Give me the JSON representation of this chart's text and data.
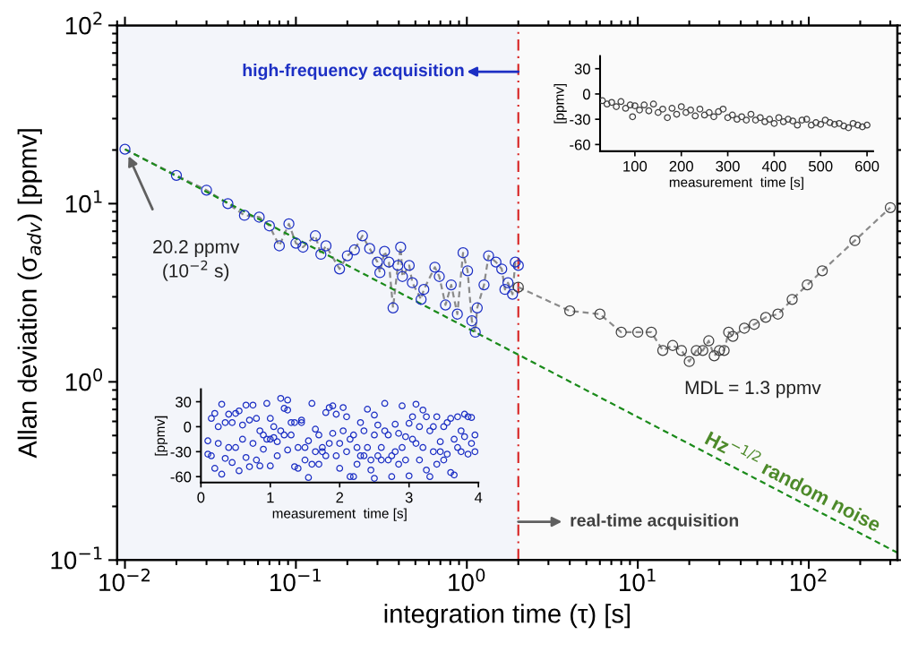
{
  "chart_data": [
    {
      "type": "line",
      "xlabel": "integration time (τ) [s]",
      "ylabel": "Allan deviation (σ$_{adv}$) [ppmv]",
      "log": "xy",
      "xlim": [
        0.009,
        330
      ],
      "ylim": [
        0.1,
        100
      ],
      "xticks": [
        {
          "value": 0.01,
          "label": "10$^{−2}$"
        },
        {
          "value": 0.1,
          "label": "10$^{−1}$"
        },
        {
          "value": 1,
          "label": "10$^{0}$"
        },
        {
          "value": 10,
          "label": "10$^{1}$"
        },
        {
          "value": 100,
          "label": "10$^{2}$"
        }
      ],
      "yticks": [
        {
          "value": 0.1,
          "label": "10$^{−1}$"
        },
        {
          "value": 1,
          "label": "10$^{0}$"
        },
        {
          "value": 10,
          "label": "10$^{1}$"
        },
        {
          "value": 100,
          "label": "10$^{2}$"
        }
      ],
      "series": [
        {
          "type": "line",
          "color": "#1c2fc4",
          "marker": "circle",
          "line_style": "dashed",
          "x": [
            0.01,
            0.02,
            0.03,
            0.04,
            0.05,
            0.061,
            0.07,
            0.08,
            0.091,
            0.1,
            0.11,
            0.13,
            0.14,
            0.15,
            0.18,
            0.2,
            0.22,
            0.245,
            0.27,
            0.3,
            0.31,
            0.33,
            0.35,
            0.37,
            0.395,
            0.41,
            0.42,
            0.46,
            0.48,
            0.54,
            0.56,
            0.65,
            0.69,
            0.75,
            0.81,
            0.88,
            0.95,
            1.01,
            1.07,
            1.12,
            1.15,
            1.26,
            1.34,
            1.48,
            1.6,
            1.67,
            1.74,
            1.85,
            1.92,
            2.0
          ],
          "values": [
            20.2,
            14.4,
            11.9,
            10.0,
            8.6,
            8.4,
            7.5,
            5.8,
            7.7,
            6.0,
            5.7,
            6.6,
            5.2,
            5.8,
            4.3,
            5.1,
            5.5,
            6.6,
            5.6,
            4.7,
            4.1,
            5.4,
            4.7,
            2.6,
            4.5,
            5.7,
            3.9,
            4.5,
            3.6,
            2.9,
            3.3,
            4.4,
            3.9,
            2.7,
            3.5,
            2.4,
            5.3,
            4.2,
            2.2,
            1.9,
            2.6,
            3.5,
            5.1,
            4.7,
            4.3,
            3.3,
            3.6,
            3.1,
            4.7,
            4.5
          ]
        },
        {
          "type": "line",
          "color": "#404040",
          "marker": "circle",
          "line_style": "dashed",
          "x": [
            2.0,
            4,
            6,
            8,
            10,
            12,
            14,
            16,
            18,
            20,
            22,
            24,
            26,
            28,
            30,
            32,
            34,
            36,
            42,
            48,
            56,
            66,
            80,
            98,
            120,
            186,
            300
          ],
          "values": [
            3.4,
            2.5,
            2.4,
            1.9,
            1.9,
            1.9,
            1.5,
            1.6,
            1.5,
            1.3,
            1.5,
            1.5,
            1.7,
            1.4,
            1.5,
            1.5,
            1.9,
            1.8,
            2.0,
            2.1,
            2.3,
            2.4,
            2.9,
            3.5,
            4.2,
            6.2,
            9.5
          ]
        },
        {
          "type": "line",
          "color": "#1a8a1a",
          "marker": "none",
          "line_style": "dashed",
          "x": [
            0.01,
            330
          ],
          "values": [
            20.2,
            0.11
          ]
        }
      ],
      "bands": [
        {
          "axis": "x",
          "from": 0.009,
          "to": 2,
          "color": "#f3f5fa"
        }
      ],
      "ref_lines": [
        {
          "axis": "x",
          "value": 2,
          "color": "#d62020",
          "line_style": "dashdot"
        }
      ],
      "annotations": [
        "20.2 ppmv\n(10$^{−2}$ s)",
        "high-frequency acquisition",
        "real-time acquisition",
        "MDL = 1.3 ppmv",
        "Hz$^{−1/2}$ random noise"
      ]
    },
    {
      "type": "scatter",
      "xlabel": "measurement  time [s]",
      "ylabel": "[ppmv]",
      "xlim": [
        0,
        4
      ],
      "ylim": [
        -67,
        45
      ],
      "xticks": [
        0,
        1,
        2,
        3,
        4
      ],
      "yticks": [
        30,
        0,
        -30,
        -60
      ],
      "marker": "circle",
      "series": [
        {
          "color": "#1c2fc4",
          "x": [
            0.1,
            0.1,
            0.15,
            0.15,
            0.2,
            0.2,
            0.25,
            0.25,
            0.3,
            0.3,
            0.35,
            0.35,
            0.4,
            0.4,
            0.45,
            0.45,
            0.5,
            0.5,
            0.55,
            0.55,
            0.6,
            0.6,
            0.65,
            0.65,
            0.7,
            0.7,
            0.75,
            0.75,
            0.8,
            0.8,
            0.85,
            0.85,
            0.9,
            0.9,
            0.95,
            0.95,
            1.0,
            1.0,
            1.0,
            1.05,
            1.05,
            1.1,
            1.1,
            1.15,
            1.15,
            1.2,
            1.2,
            1.25,
            1.25,
            1.25,
            1.3,
            1.3,
            1.35,
            1.35,
            1.4,
            1.4,
            1.45,
            1.45,
            1.5,
            1.5,
            1.55,
            1.55,
            1.6,
            1.6,
            1.65,
            1.65,
            1.7,
            1.7,
            1.75,
            1.75,
            1.8,
            1.8,
            1.85,
            1.85,
            1.9,
            1.9,
            1.95,
            1.95,
            2.0,
            2.0,
            2.05,
            2.05,
            2.1,
            2.1,
            2.15,
            2.15,
            2.2,
            2.2,
            2.25,
            2.25,
            2.3,
            2.3,
            2.35,
            2.35,
            2.4,
            2.4,
            2.45,
            2.45,
            2.5,
            2.5,
            2.5,
            2.55,
            2.55,
            2.6,
            2.6,
            2.65,
            2.65,
            2.7,
            2.7,
            2.75,
            2.75,
            2.8,
            2.8,
            2.85,
            2.85,
            2.9,
            2.9,
            2.95,
            2.95,
            3.0,
            3.0,
            3.05,
            3.05,
            3.1,
            3.1,
            3.15,
            3.15,
            3.2,
            3.2,
            3.25,
            3.25,
            3.3,
            3.3,
            3.35,
            3.35,
            3.4,
            3.4,
            3.45,
            3.45,
            3.5,
            3.5,
            3.55,
            3.55,
            3.6,
            3.6,
            3.65,
            3.65,
            3.7,
            3.7,
            3.75,
            3.75,
            3.8,
            3.8,
            3.85,
            3.85,
            3.9,
            3.9,
            3.95,
            3.95
          ],
          "values": [
            -17,
            -33,
            -35,
            10,
            16,
            -50,
            -20,
            0,
            27,
            -57,
            -38,
            5,
            15,
            -25,
            -43,
            5,
            -25,
            16,
            -53,
            19,
            2,
            -15,
            26,
            -37,
            -48,
            8,
            26,
            -20,
            10,
            -40,
            -47,
            -5,
            -27,
            -10,
            28,
            -15,
            -47,
            10,
            -15,
            -13,
            0,
            -35,
            -18,
            34,
            -5,
            22,
            -10,
            32,
            20,
            -28,
            -10,
            5,
            -48,
            5,
            -50,
            -25,
            5,
            8,
            -40,
            -25,
            -17,
            -61,
            -45,
            28,
            -3,
            -30,
            -45,
            -10,
            -25,
            -30,
            17,
            -35,
            23,
            -20,
            -8,
            25,
            15,
            -35,
            -20,
            -50,
            23,
            -5,
            12,
            -30,
            -60,
            -15,
            -60,
            -10,
            -25,
            -45,
            5,
            -35,
            -35,
            -5,
            21,
            -25,
            -52,
            -40,
            14,
            -10,
            -62,
            2,
            -35,
            -25,
            -40,
            28,
            -5,
            -40,
            -10,
            -60,
            -35,
            3,
            -30,
            -45,
            -8,
            25,
            -25,
            -40,
            -12,
            4,
            -59,
            -15,
            12,
            27,
            -20,
            -40,
            0,
            20,
            -25,
            -52,
            12,
            -60,
            -5,
            0,
            -30,
            -45,
            12,
            -18,
            -30,
            -40,
            0,
            -33,
            5,
            -55,
            10,
            -58,
            -15,
            12,
            -25,
            -5,
            -30,
            15,
            -12,
            -33,
            12,
            -20,
            11,
            -30,
            -10
          ]
        }
      ]
    },
    {
      "type": "scatter",
      "xlabel": "measurement  time [s]",
      "ylabel": "[ppmv]",
      "xlim": [
        25,
        613
      ],
      "ylim": [
        -68,
        45
      ],
      "xticks": [
        100,
        200,
        300,
        400,
        500,
        600
      ],
      "yticks": [
        30,
        0,
        -30,
        -60
      ],
      "marker": "circle",
      "series": [
        {
          "color": "#404040",
          "x": [
            30,
            40,
            50,
            60,
            70,
            80,
            90,
            95,
            100,
            110,
            120,
            130,
            140,
            150,
            160,
            170,
            180,
            190,
            200,
            210,
            220,
            230,
            240,
            250,
            260,
            270,
            280,
            290,
            300,
            310,
            320,
            330,
            340,
            350,
            360,
            370,
            380,
            390,
            400,
            410,
            420,
            430,
            440,
            450,
            460,
            470,
            480,
            490,
            500,
            510,
            520,
            530,
            540,
            550,
            560,
            570,
            580,
            590,
            600
          ],
          "values": [
            -8,
            -12,
            -10,
            -15,
            -9,
            -17,
            -13,
            -27,
            -14,
            -19,
            -13,
            -20,
            -12,
            -22,
            -18,
            -28,
            -17,
            -24,
            -15,
            -22,
            -19,
            -26,
            -18,
            -25,
            -22,
            -27,
            -21,
            -18,
            -28,
            -25,
            -30,
            -27,
            -31,
            -24,
            -31,
            -28,
            -33,
            -30,
            -35,
            -28,
            -33,
            -30,
            -32,
            -37,
            -31,
            -30,
            -37,
            -34,
            -36,
            -31,
            -34,
            -36,
            -35,
            -38,
            -40,
            -35,
            -37,
            -39,
            -37
          ]
        }
      ]
    }
  ]
}
